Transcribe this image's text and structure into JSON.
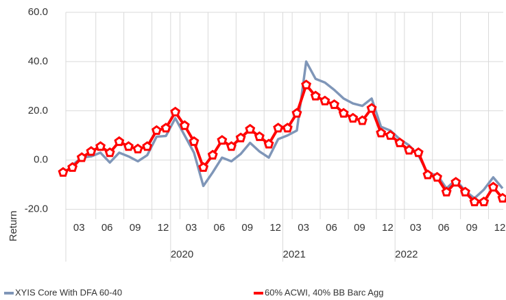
{
  "chart_data": {
    "type": "line",
    "y_label": "Return",
    "categories": [
      null,
      null,
      "03",
      null,
      null,
      "06",
      null,
      null,
      "09",
      null,
      null,
      "12",
      null,
      null,
      "03",
      null,
      null,
      "06",
      null,
      null,
      "09",
      null,
      null,
      "12",
      null,
      null,
      "03",
      null,
      null,
      "06",
      null,
      null,
      "09",
      null,
      null,
      "12",
      null,
      null,
      "03",
      null,
      null,
      "06",
      null,
      null,
      "09",
      null,
      null,
      "12"
    ],
    "years": [
      null,
      "2020",
      "2021",
      "2022"
    ],
    "series": [
      {
        "name": "XYIS Core With DFA 60-40",
        "color": "#7f96b8",
        "values": [
          -6,
          -2,
          1,
          1.5,
          3,
          -1,
          3,
          1.5,
          -0.5,
          2,
          9.5,
          9.8,
          17,
          10,
          3,
          -10.5,
          -5,
          1,
          -0.5,
          2.5,
          7,
          3.5,
          1,
          8.5,
          10,
          12,
          40,
          33,
          31.5,
          28.5,
          25,
          23,
          22,
          25,
          13.5,
          12,
          8.5,
          6,
          2,
          -5.5,
          -6,
          -11.5,
          -8,
          -12.5,
          -15.5,
          -12,
          -7,
          -11.5
        ]
      },
      {
        "name": "60% ACWI, 40% BB Barc Agg",
        "color": "#ff0000",
        "markers": true,
        "values": [
          -5,
          -3,
          1,
          3.5,
          5.5,
          3,
          7.5,
          5.5,
          4.5,
          5.5,
          12,
          13,
          19.5,
          14,
          7.5,
          -3,
          2,
          8,
          5.5,
          9,
          12.5,
          9.5,
          6.5,
          13,
          13,
          19,
          30.5,
          26,
          24,
          22.5,
          19,
          17,
          16,
          21,
          11,
          10,
          7,
          4,
          3,
          -6,
          -7,
          -13,
          -9,
          -13,
          -17,
          -17,
          -11,
          -15.5
        ]
      }
    ],
    "ylim": [
      -24,
      60
    ],
    "yticks": [
      {
        "value": -20,
        "label": "-20.0"
      },
      {
        "value": 0,
        "label": "0.0"
      },
      {
        "value": 20,
        "label": "20.0"
      },
      {
        "value": 40,
        "label": "40.0"
      },
      {
        "value": 60,
        "label": "60.0"
      }
    ],
    "grid": true,
    "legend": "bottom"
  }
}
